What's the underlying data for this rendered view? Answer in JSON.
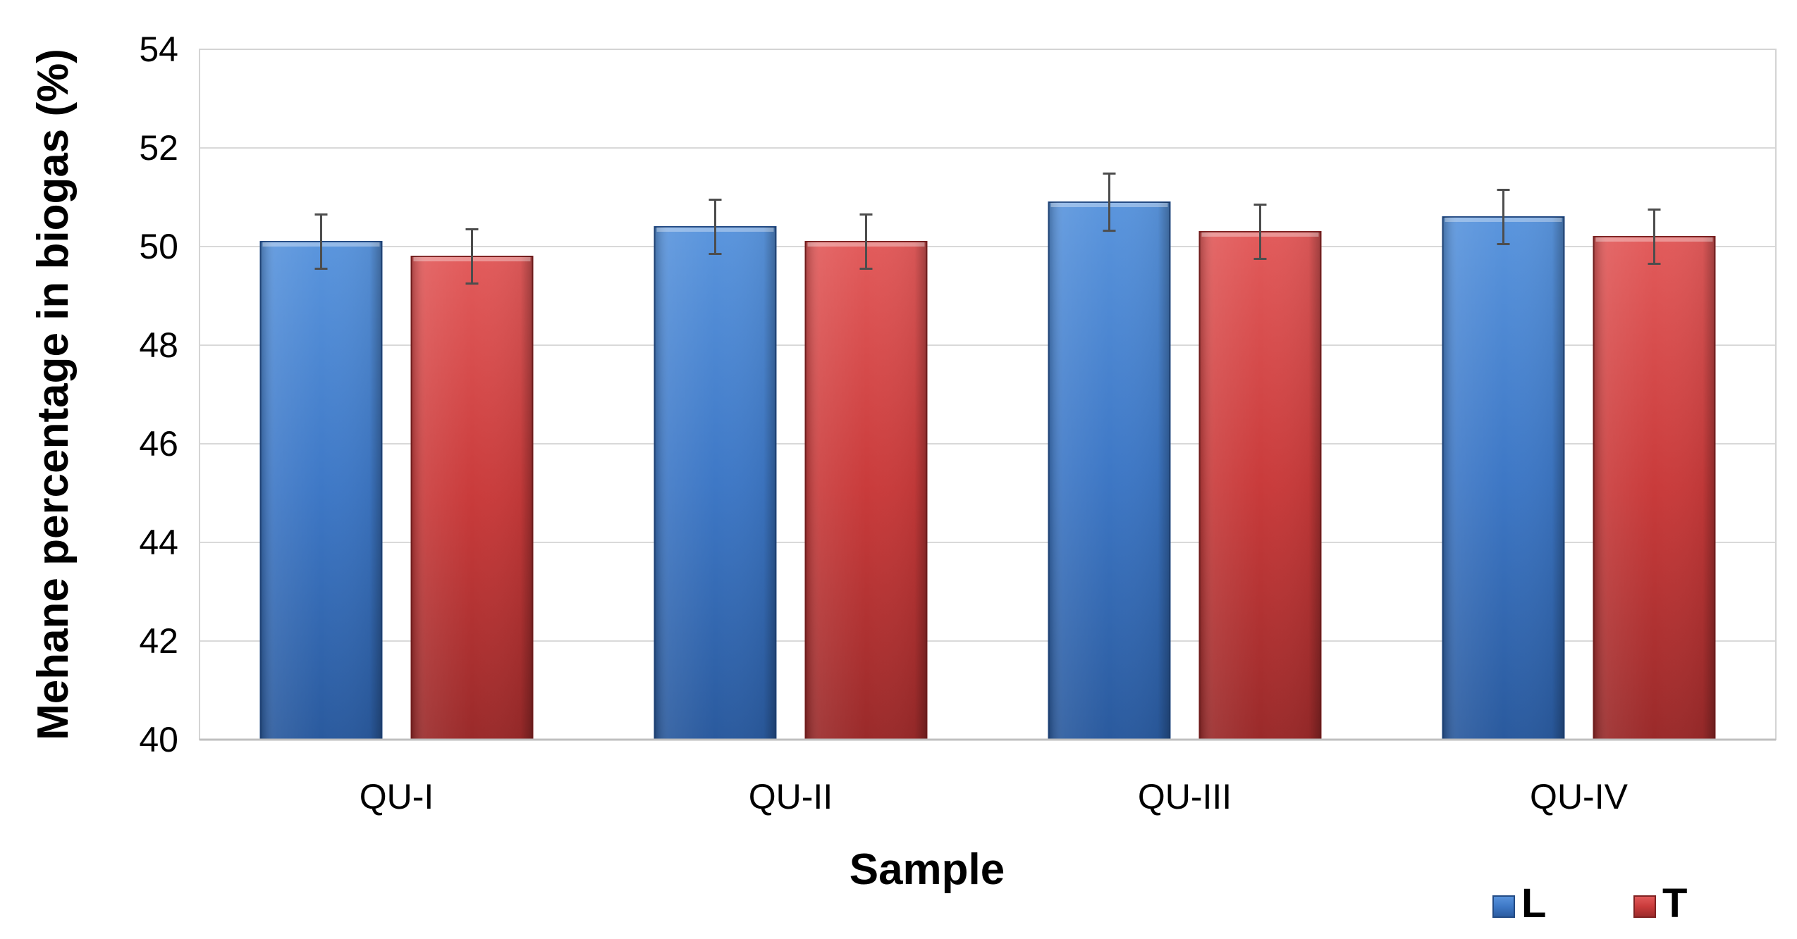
{
  "chart_data": {
    "type": "bar",
    "xlabel": "Sample",
    "ylabel": "Mehane percentage in biogas (%)",
    "categories": [
      "QU-I",
      "QU-II",
      "QU-III",
      "QU-IV"
    ],
    "series": [
      {
        "name": "L",
        "values": [
          50.1,
          50.4,
          50.9,
          50.6
        ],
        "errors": [
          0.55,
          0.55,
          0.58,
          0.55
        ],
        "color": "#3d78c9"
      },
      {
        "name": "T",
        "values": [
          49.8,
          50.1,
          50.3,
          50.2
        ],
        "errors": [
          0.55,
          0.55,
          0.55,
          0.55
        ],
        "color": "#c9383a"
      }
    ],
    "ylim": [
      40,
      54
    ],
    "yticks": [
      40,
      42,
      44,
      46,
      48,
      50,
      52,
      54
    ],
    "grid": true,
    "legend_position": "bottom-right",
    "error_bars": true
  }
}
